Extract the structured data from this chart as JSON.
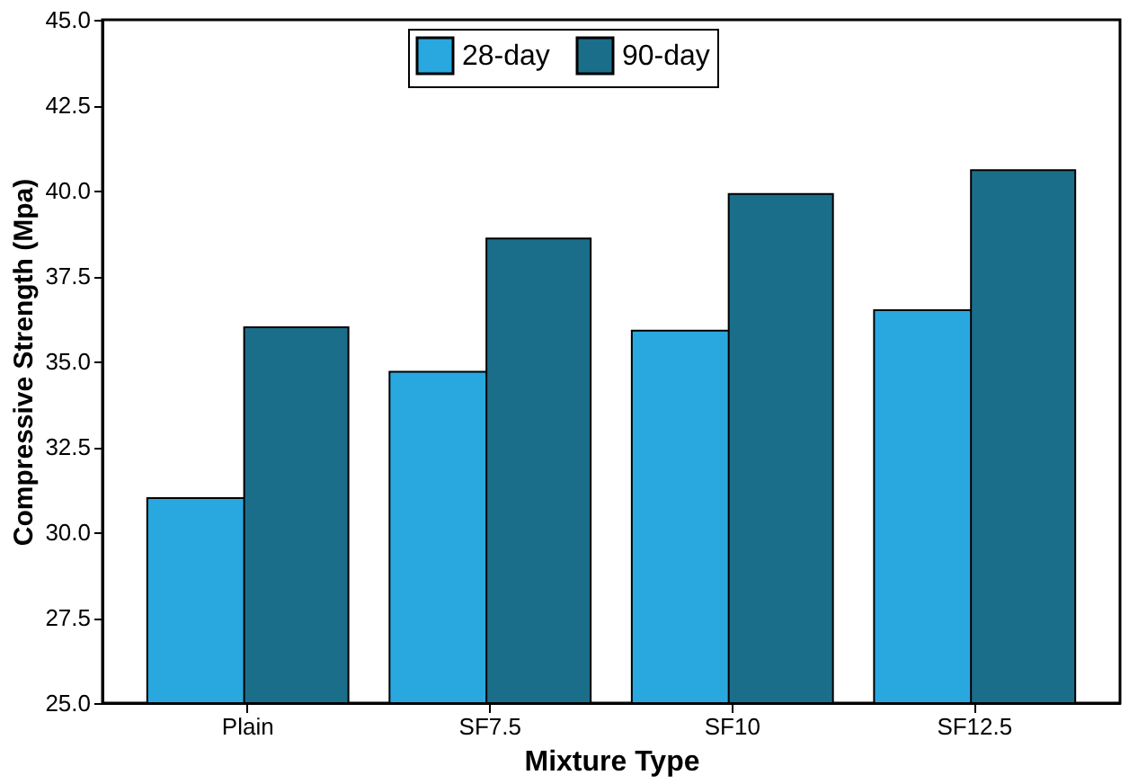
{
  "chart_data": {
    "type": "bar",
    "xlabel": "Mixture Type",
    "ylabel": "Compressive Strength (Mpa)",
    "categories": [
      "Plain",
      "SF7.5",
      "SF10",
      "SF12.5"
    ],
    "series": [
      {
        "name": "28-day",
        "color": "#29a8e0",
        "values": [
          31.0,
          34.7,
          35.9,
          36.5
        ]
      },
      {
        "name": "90-day",
        "color": "#1b6e8a",
        "values": [
          36.0,
          38.6,
          39.9,
          40.6
        ]
      }
    ],
    "ylim": [
      25.0,
      45.0
    ],
    "yticks": [
      {
        "value": 25,
        "label": "25.0"
      },
      {
        "value": 27.5,
        "label": "27.5"
      },
      {
        "value": 30,
        "label": "30.0"
      },
      {
        "value": 32.5,
        "label": "32.5"
      },
      {
        "value": 35,
        "label": "35.0"
      },
      {
        "value": 37.5,
        "label": "37.5"
      },
      {
        "value": 40,
        "label": "40.0"
      },
      {
        "value": 42.5,
        "label": "42.5"
      },
      {
        "value": 45,
        "label": "45.0"
      }
    ],
    "legend": "top",
    "grid": false
  }
}
